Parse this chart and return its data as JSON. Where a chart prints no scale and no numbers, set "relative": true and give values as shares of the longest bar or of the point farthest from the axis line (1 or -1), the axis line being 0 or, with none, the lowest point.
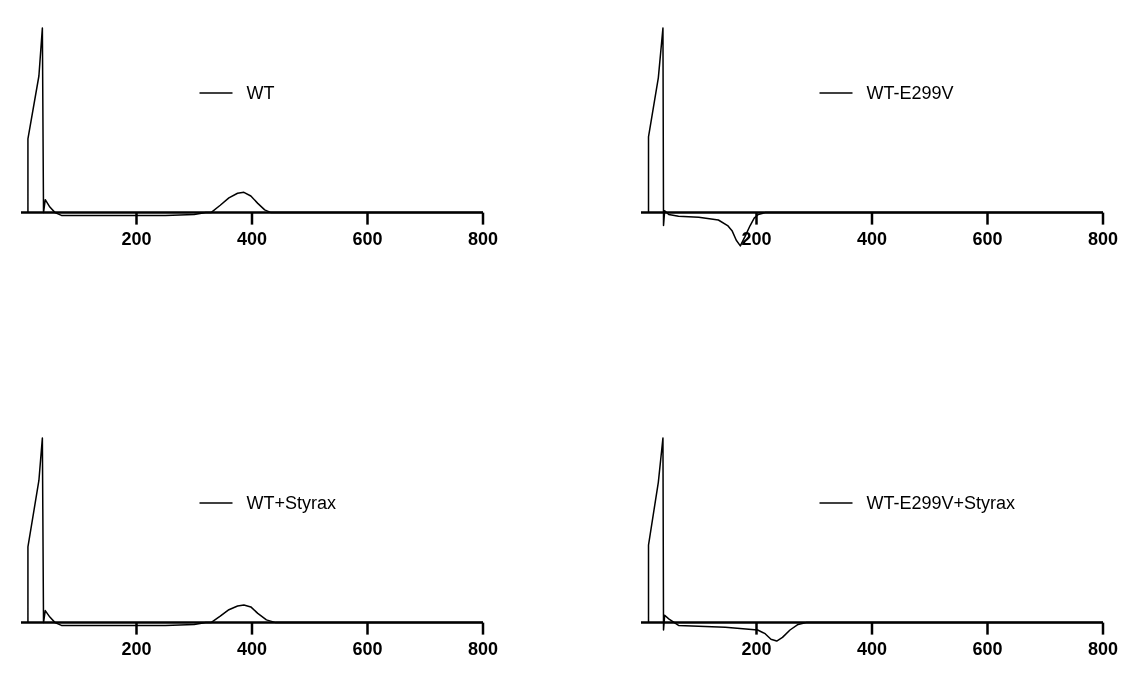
{
  "chart_data": [
    {
      "type": "line",
      "relative": true,
      "legend": "top",
      "xlim": [
        0,
        800
      ],
      "xticks": [
        200,
        400,
        600,
        800
      ],
      "x": [
        12,
        12,
        31,
        37,
        39,
        42,
        50,
        59,
        70,
        150,
        250,
        300,
        320,
        329,
        345,
        360,
        375,
        386,
        398,
        410,
        422,
        433,
        800
      ],
      "series": [
        {
          "name": "WT",
          "color": "#000000",
          "values": [
            0,
            0.4,
            0.74,
            1,
            0,
            0.07,
            0.03,
            0,
            -0.015,
            -0.015,
            -0.015,
            -0.01,
            0,
            0,
            0.04,
            0.08,
            0.105,
            0.11,
            0.09,
            0.05,
            0.015,
            0,
            0
          ]
        }
      ]
    },
    {
      "type": "line",
      "relative": true,
      "legend": "top",
      "xlim": [
        0,
        800
      ],
      "xticks": [
        200,
        400,
        600,
        800
      ],
      "x": [
        13,
        13,
        30,
        38,
        39,
        41,
        48,
        65,
        100,
        134,
        150,
        158,
        165,
        172,
        180,
        189,
        196,
        203,
        215,
        800
      ],
      "series": [
        {
          "name": "WT-E299V",
          "color": "#000000",
          "values": [
            0,
            0.41,
            0.73,
            1,
            -0.07,
            0.01,
            -0.01,
            -0.02,
            -0.025,
            -0.04,
            -0.07,
            -0.1,
            -0.15,
            -0.18,
            -0.13,
            -0.07,
            -0.03,
            -0.01,
            0,
            0
          ]
        }
      ]
    },
    {
      "type": "line",
      "relative": true,
      "legend": "top",
      "xlim": [
        0,
        800
      ],
      "xticks": [
        200,
        400,
        600,
        800
      ],
      "x": [
        12,
        12,
        31,
        37,
        39,
        42,
        50,
        59,
        70,
        150,
        250,
        300,
        320,
        329,
        345,
        360,
        375,
        386,
        398,
        410,
        425,
        441,
        800
      ],
      "series": [
        {
          "name": "WT+Styrax",
          "color": "#000000",
          "values": [
            0,
            0.41,
            0.77,
            1,
            0,
            0.065,
            0.03,
            0,
            -0.015,
            -0.015,
            -0.015,
            -0.01,
            0,
            0,
            0.035,
            0.07,
            0.09,
            0.095,
            0.085,
            0.05,
            0.015,
            0,
            0
          ]
        }
      ]
    },
    {
      "type": "line",
      "relative": true,
      "legend": "top",
      "xlim": [
        0,
        800
      ],
      "xticks": [
        200,
        400,
        600,
        800
      ],
      "x": [
        13,
        13,
        30,
        38,
        39,
        41,
        48,
        65,
        146,
        202,
        215,
        225,
        235,
        245,
        258,
        272,
        286,
        800
      ],
      "series": [
        {
          "name": "WT-E299V+Styrax",
          "color": "#000000",
          "values": [
            0,
            0.42,
            0.76,
            1,
            -0.04,
            0.04,
            0.02,
            -0.015,
            -0.025,
            -0.04,
            -0.06,
            -0.09,
            -0.1,
            -0.08,
            -0.04,
            -0.01,
            0,
            0
          ]
        }
      ]
    }
  ]
}
